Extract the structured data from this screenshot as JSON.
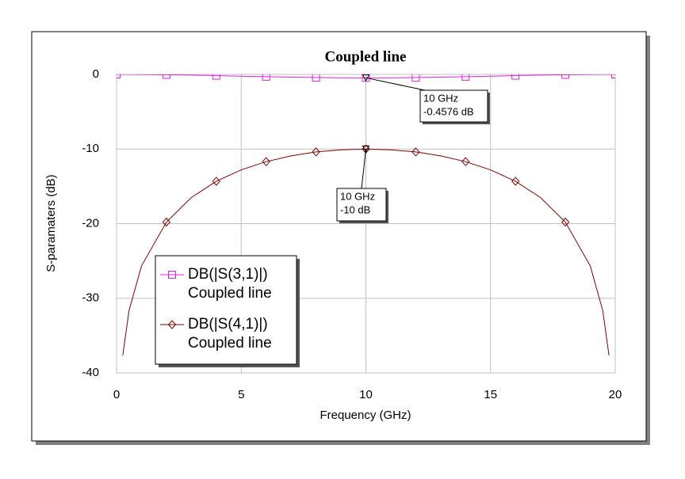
{
  "chart_data": {
    "type": "line",
    "title": "Coupled line",
    "x_label": "Frequency (GHz)",
    "y_label": "S-paramaters (dB)",
    "x": [
      0,
      0.25,
      0.5,
      1,
      2,
      3,
      4,
      5,
      6,
      7,
      8,
      9,
      10,
      11,
      12,
      13,
      14,
      15,
      16,
      17,
      18,
      19,
      19.5,
      19.75,
      20
    ],
    "series": [
      {
        "name": "DB(|S(3,1)|)",
        "source": "Coupled line",
        "color": "#e020e0",
        "marker": "square",
        "values": [
          0,
          -0.0007,
          -0.003,
          -0.012,
          -0.046,
          -0.098,
          -0.164,
          -0.235,
          -0.305,
          -0.367,
          -0.416,
          -0.447,
          -0.4576,
          -0.447,
          -0.416,
          -0.367,
          -0.305,
          -0.235,
          -0.164,
          -0.098,
          -0.046,
          -0.012,
          -0.003,
          -0.0007,
          0
        ]
      },
      {
        "name": "DB(|S(4,1)|)",
        "source": "Coupled line",
        "color": "#800000",
        "marker": "diamond",
        "values": [
          null,
          -37.66,
          -31.65,
          -25.67,
          -19.79,
          -16.5,
          -14.32,
          -12.79,
          -11.69,
          -10.91,
          -10.39,
          -10.1,
          -10,
          -10.1,
          -10.39,
          -10.91,
          -11.69,
          -12.79,
          -14.32,
          -16.5,
          -19.79,
          -25.67,
          -31.65,
          -37.66,
          null
        ]
      }
    ],
    "annotations": [
      {
        "x": 10,
        "y": -0.4576,
        "lines": [
          "10 GHz",
          "-0.4576 dB"
        ]
      },
      {
        "x": 10,
        "y": -10,
        "lines": [
          "10 GHz",
          "-10 dB"
        ]
      }
    ],
    "xlim": [
      0,
      20
    ],
    "xticks": [
      0,
      5,
      10,
      15,
      20
    ],
    "ylim": [
      -40,
      0
    ],
    "yticks": [
      0,
      -10,
      -20,
      -30,
      -40
    ],
    "grid": true
  }
}
